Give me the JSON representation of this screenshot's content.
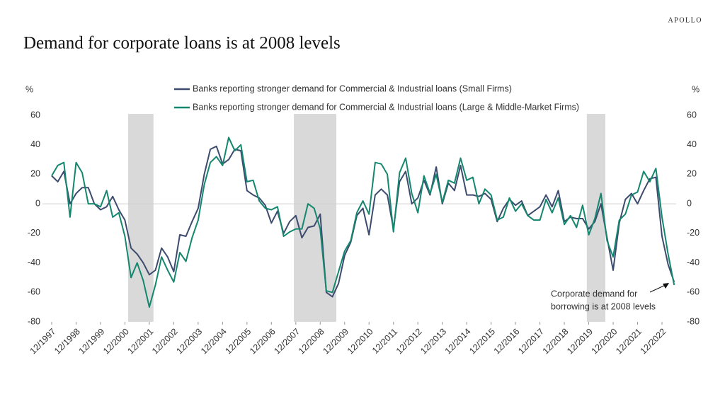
{
  "brand": "APOLLO",
  "chart_data": {
    "type": "line",
    "title": "Demand for corporate loans is at 2008 levels",
    "y_label": "%",
    "y2_label": "%",
    "ylim": [
      -80,
      60
    ],
    "yticks": [
      -80,
      -60,
      -40,
      -20,
      0,
      20,
      40,
      60
    ],
    "y2lim": [
      -80,
      60
    ],
    "y2ticks": [
      -80,
      -60,
      -40,
      -20,
      0,
      20,
      40,
      60
    ],
    "xlim": [
      1997.92,
      2023.5
    ],
    "xticks": [
      {
        "value": 1997.92,
        "label": "12/1997"
      },
      {
        "value": 1998.92,
        "label": "12/1998"
      },
      {
        "value": 1999.92,
        "label": "12/1999"
      },
      {
        "value": 2000.92,
        "label": "12/2000"
      },
      {
        "value": 2001.92,
        "label": "12/2001"
      },
      {
        "value": 2002.92,
        "label": "12/2002"
      },
      {
        "value": 2003.92,
        "label": "12/2003"
      },
      {
        "value": 2004.92,
        "label": "12/2004"
      },
      {
        "value": 2005.92,
        "label": "12/2005"
      },
      {
        "value": 2006.92,
        "label": "12/2006"
      },
      {
        "value": 2007.92,
        "label": "12/2007"
      },
      {
        "value": 2008.92,
        "label": "12/2008"
      },
      {
        "value": 2009.92,
        "label": "12/2009"
      },
      {
        "value": 2010.92,
        "label": "12/2010"
      },
      {
        "value": 2011.92,
        "label": "12/2011"
      },
      {
        "value": 2012.92,
        "label": "12/2012"
      },
      {
        "value": 2013.92,
        "label": "12/2013"
      },
      {
        "value": 2014.92,
        "label": "12/2014"
      },
      {
        "value": 2015.92,
        "label": "12/2015"
      },
      {
        "value": 2016.92,
        "label": "12/2016"
      },
      {
        "value": 2017.92,
        "label": "12/2017"
      },
      {
        "value": 2018.92,
        "label": "12/2018"
      },
      {
        "value": 2019.92,
        "label": "12/2019"
      },
      {
        "value": 2020.92,
        "label": "12/2020"
      },
      {
        "value": 2021.92,
        "label": "12/2021"
      },
      {
        "value": 2022.92,
        "label": "12/2022"
      }
    ],
    "shaded_periods": [
      [
        2001.05,
        2002.09
      ],
      [
        2007.84,
        2009.58
      ],
      [
        2019.84,
        2020.6
      ]
    ],
    "shade_color": "#d9d9d9",
    "x": [
      1997.92,
      1998.17,
      1998.42,
      1998.67,
      1998.92,
      1999.17,
      1999.42,
      1999.67,
      1999.92,
      2000.17,
      2000.42,
      2000.67,
      2000.92,
      2001.17,
      2001.42,
      2001.67,
      2001.92,
      2002.17,
      2002.42,
      2002.67,
      2002.92,
      2003.17,
      2003.42,
      2003.67,
      2003.92,
      2004.17,
      2004.42,
      2004.67,
      2004.92,
      2005.17,
      2005.42,
      2005.67,
      2005.92,
      2006.17,
      2006.42,
      2006.67,
      2006.92,
      2007.17,
      2007.42,
      2007.67,
      2007.92,
      2008.17,
      2008.42,
      2008.67,
      2008.92,
      2009.17,
      2009.42,
      2009.67,
      2009.92,
      2010.17,
      2010.42,
      2010.67,
      2010.92,
      2011.17,
      2011.42,
      2011.67,
      2011.92,
      2012.17,
      2012.42,
      2012.67,
      2012.92,
      2013.17,
      2013.42,
      2013.67,
      2013.92,
      2014.17,
      2014.42,
      2014.67,
      2014.92,
      2015.17,
      2015.42,
      2015.67,
      2015.92,
      2016.17,
      2016.42,
      2016.67,
      2016.92,
      2017.17,
      2017.42,
      2017.67,
      2017.92,
      2018.17,
      2018.42,
      2018.67,
      2018.92,
      2019.17,
      2019.42,
      2019.67,
      2019.92,
      2020.17,
      2020.42,
      2020.67,
      2020.92,
      2021.17,
      2021.42,
      2021.67,
      2021.92,
      2022.17,
      2022.42,
      2022.67,
      2022.92,
      2023.17,
      2023.42
    ],
    "series": [
      {
        "name": "Banks reporting stronger demand for Commercial & Industrial loans (Small Firms)",
        "color": "#3d4b6e",
        "values": [
          19,
          15,
          22,
          0,
          7,
          11,
          11,
          0,
          -4,
          -2,
          5,
          -4,
          -11,
          -30,
          -34,
          -40,
          -48,
          -45,
          -30,
          -36,
          -46,
          -21,
          -22,
          -12,
          -3,
          20,
          37,
          39,
          27,
          30,
          37,
          36,
          9,
          6,
          4,
          -1,
          -13,
          -5,
          -20,
          -12,
          -8,
          -23,
          -16,
          -15,
          -7,
          -60,
          -63,
          -54,
          -35,
          -26,
          -8,
          -3,
          -21,
          6,
          10,
          6,
          -17,
          15,
          22,
          0,
          4,
          16,
          6,
          25,
          0,
          14,
          9,
          26,
          6,
          6,
          5,
          7,
          3,
          -12,
          -3,
          3,
          -1,
          2,
          -8,
          -5,
          -2,
          6,
          -2,
          9,
          -12,
          -9,
          -10,
          -10,
          -17,
          -12,
          0,
          -23,
          -45,
          -13,
          3,
          7,
          0,
          9,
          17,
          18,
          -22,
          -41,
          -53
        ]
      },
      {
        "name": "Banks reporting stronger demand for Commercial & Industrial loans (Large & Middle-Market Firms)",
        "color": "#14876e",
        "values": [
          19,
          26,
          28,
          -9,
          28,
          21,
          0,
          0,
          -2,
          9,
          -9,
          -6,
          -22,
          -50,
          -40,
          -52,
          -70,
          -55,
          -36,
          -45,
          -53,
          -33,
          -39,
          -23,
          -11,
          13,
          28,
          32,
          26,
          45,
          36,
          40,
          15,
          16,
          2,
          -3,
          -4,
          -2,
          -22,
          -19,
          -17,
          -17,
          0,
          -3,
          -17,
          -59,
          -60,
          -46,
          -32,
          -25,
          -6,
          2,
          -7,
          28,
          27,
          20,
          -19,
          21,
          31,
          7,
          -6,
          19,
          7,
          20,
          1,
          16,
          14,
          31,
          16,
          18,
          0,
          10,
          6,
          -11,
          -9,
          4,
          -5,
          0,
          -8,
          -11,
          -11,
          3,
          -6,
          4,
          -14,
          -8,
          -16,
          -1,
          -21,
          -10,
          7,
          -25,
          -36,
          -11,
          -7,
          6,
          8,
          22,
          15,
          24,
          -9,
          -34,
          -55
        ]
      }
    ],
    "annotation": [
      "Corporate demand for",
      "borrowing is at 2008 levels"
    ]
  }
}
